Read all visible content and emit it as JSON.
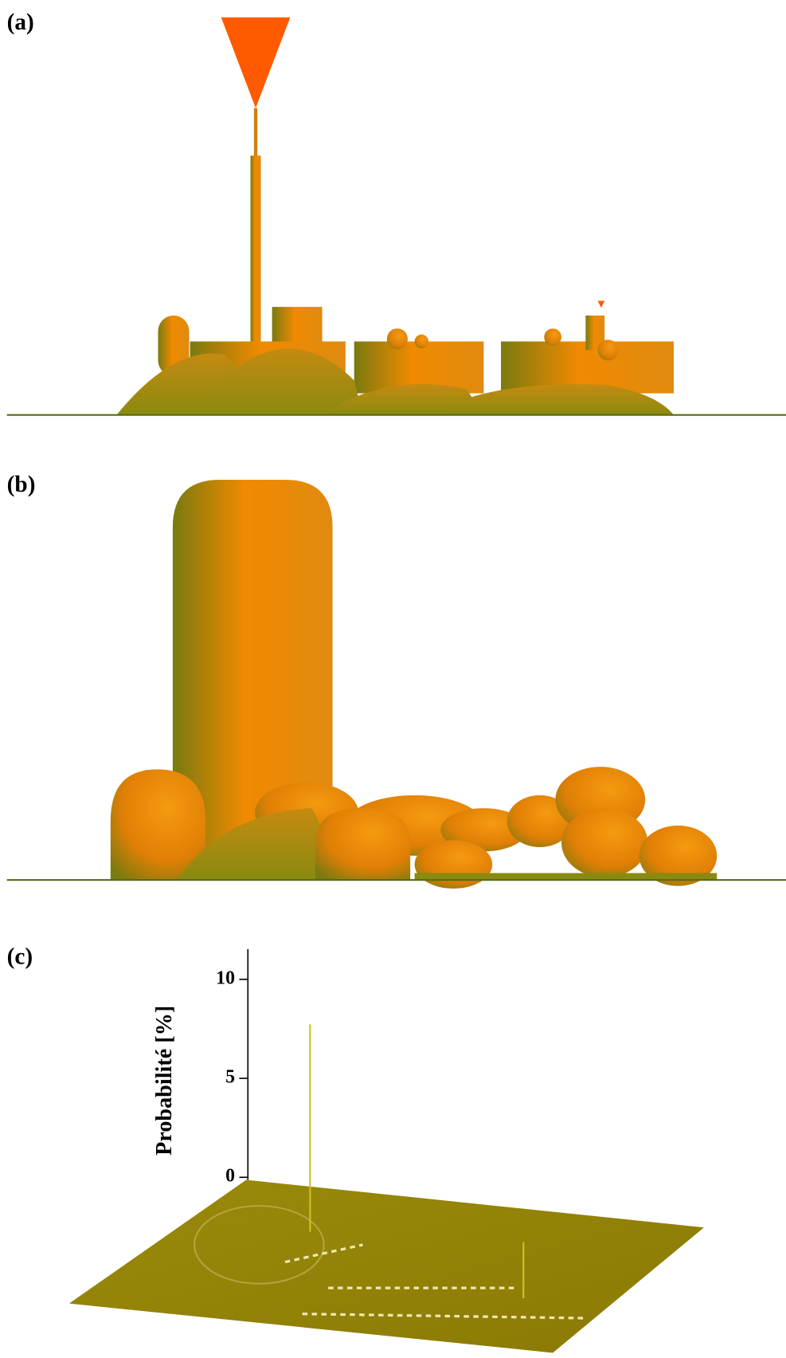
{
  "figure": {
    "panels": [
      {
        "label": "(a)"
      },
      {
        "label": "(b)"
      },
      {
        "label": "(c)",
        "axis_label": "Probabilité [%]",
        "ticks": [
          0,
          5,
          10
        ]
      }
    ]
  }
}
